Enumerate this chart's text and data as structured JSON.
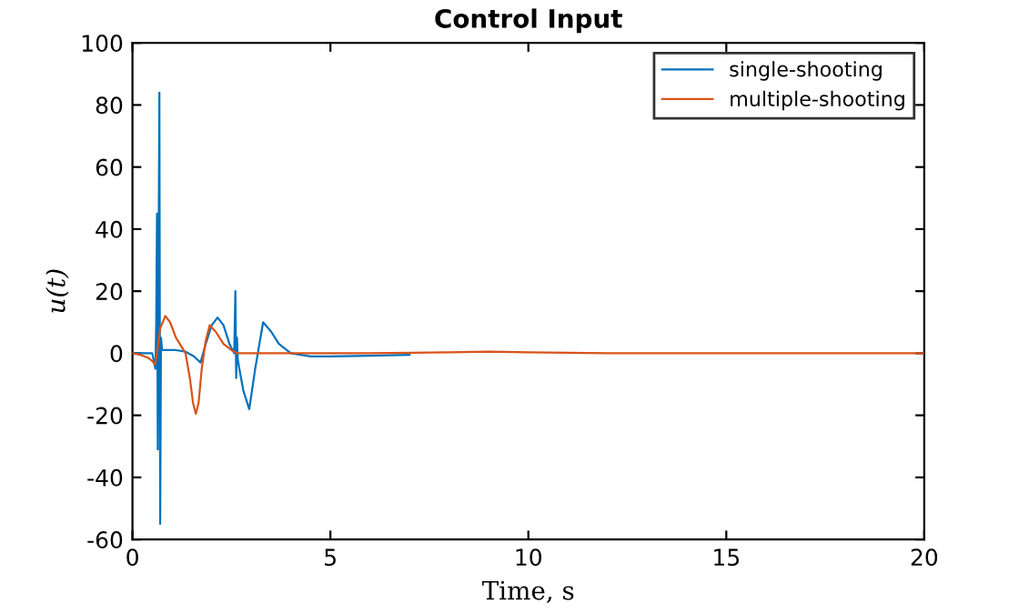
{
  "chart_data": {
    "type": "line",
    "title": "Control Input",
    "xlabel": "Time, s",
    "ylabel": "u(t)",
    "xlim": [
      0,
      20
    ],
    "ylim": [
      -60,
      100
    ],
    "xticks": [
      0,
      5,
      10,
      15,
      20
    ],
    "yticks": [
      -60,
      -40,
      -20,
      0,
      20,
      40,
      60,
      80,
      100
    ],
    "grid": false,
    "legend": "top right",
    "marker": "none",
    "line_style": "solid",
    "series": [
      {
        "name": "single-shooting",
        "color": "#0072bd",
        "x": [
          0,
          0.3,
          0.5,
          0.58,
          0.6,
          0.62,
          0.64,
          0.66,
          0.68,
          0.7,
          0.72,
          0.75,
          0.9,
          1.1,
          1.34,
          1.55,
          1.72,
          1.85,
          2.0,
          2.15,
          2.3,
          2.45,
          2.57,
          2.6,
          2.62,
          2.64,
          2.66,
          2.7,
          2.8,
          2.95,
          3.1,
          3.3,
          3.5,
          3.7,
          4.0,
          4.5,
          5,
          6,
          7
        ],
        "values": [
          0,
          0,
          0,
          -5,
          10,
          45,
          -31,
          30,
          84,
          -55,
          5,
          1,
          1,
          1,
          0.5,
          -1,
          -3,
          3,
          9,
          11.5,
          9,
          3,
          0,
          20,
          -8,
          5,
          -2,
          -5,
          -12,
          -18,
          -5,
          10,
          7,
          3,
          0,
          -1,
          -1,
          -0.8,
          -0.5
        ]
      },
      {
        "name": "multiple-shooting",
        "color": "#d95319",
        "x": [
          0,
          0.2,
          0.4,
          0.5,
          0.57,
          0.62,
          0.7,
          0.83,
          0.95,
          1.1,
          1.34,
          1.45,
          1.53,
          1.6,
          1.67,
          1.75,
          1.85,
          1.95,
          2.1,
          2.3,
          2.5,
          2.65,
          3,
          4,
          6,
          8,
          9,
          10,
          12,
          15,
          20
        ],
        "values": [
          0,
          -0.5,
          -1.5,
          -2.5,
          -3.7,
          0,
          8,
          12,
          10,
          5,
          0,
          -8,
          -16,
          -19.5,
          -16,
          -5,
          4,
          9,
          7,
          3,
          1,
          0,
          0,
          0,
          0,
          0.3,
          0.5,
          0.3,
          0,
          0,
          0
        ]
      }
    ]
  }
}
